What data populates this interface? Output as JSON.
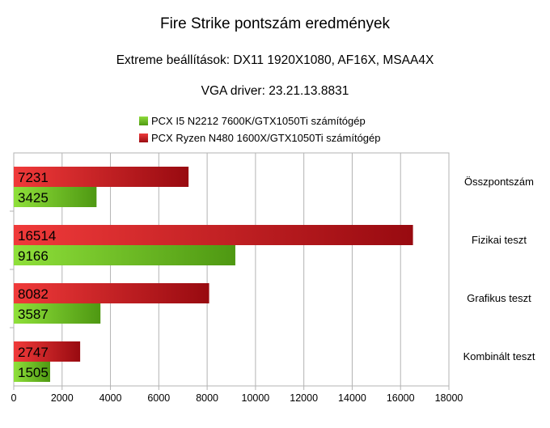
{
  "colors": {
    "series_green": "#6fc21f",
    "series_red": "#d4141c",
    "grid": "#b3b3b3",
    "text": "#000000"
  },
  "chart_data": {
    "type": "bar",
    "orientation": "horizontal",
    "title": "Fire Strike pontszám eredmények",
    "subtitles": [
      "Extreme beállítások: DX11 1920X1080, AF16X, MSAA4X",
      "VGA driver: 23.21.13.8831"
    ],
    "categories": [
      "Összpontszám",
      "Fizikai teszt",
      "Grafikus teszt",
      "Kombinált teszt"
    ],
    "series": [
      {
        "name": "PCX I5 N2212 7600K/GTX1050Ti számítógép",
        "color": "#6fc21f",
        "values": [
          3425,
          9166,
          3587,
          1505
        ]
      },
      {
        "name": "PCX Ryzen N480 1600X/GTX1050Ti számítógép",
        "color": "#d4141c",
        "values": [
          7231,
          16514,
          8082,
          2747
        ]
      }
    ],
    "xlim": [
      0,
      18000
    ],
    "xticks": [
      0,
      2000,
      4000,
      6000,
      8000,
      10000,
      12000,
      14000,
      16000,
      18000
    ],
    "grid": true,
    "legend_position": "top",
    "category_axis_side": "right"
  }
}
